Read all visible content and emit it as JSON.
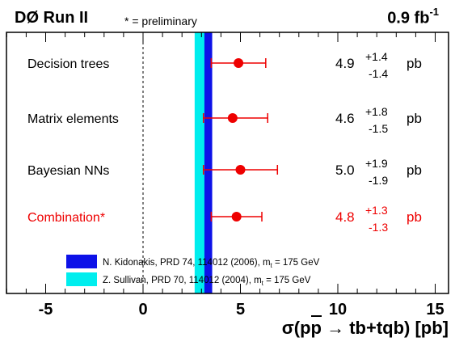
{
  "header": {
    "experiment": "DØ Run II",
    "note": "* = preliminary",
    "luminosity": "0.9 fb",
    "luminosity_exp": "-1"
  },
  "chart_data": {
    "type": "scatter",
    "orientation": "horizontal-forest",
    "xlabel": "σ(pp̄ → tb+tqb) [pb]",
    "xlim": [
      -7.5,
      16
    ],
    "x_ticks": [
      -5,
      0,
      5,
      10,
      15
    ],
    "reference_line_x": 0,
    "unit": "pb",
    "measurements": [
      {
        "label": "Decision trees",
        "value": 4.9,
        "err_up": 1.4,
        "err_down": 1.4,
        "value_text": "4.9",
        "up_text": "+1.4",
        "down_text": "-1.4",
        "color": "#000000",
        "marker_color": "#ee0000"
      },
      {
        "label": "Matrix elements",
        "value": 4.6,
        "err_up": 1.8,
        "err_down": 1.5,
        "value_text": "4.6",
        "up_text": "+1.8",
        "down_text": "-1.5",
        "color": "#000000",
        "marker_color": "#ee0000"
      },
      {
        "label": "Bayesian NNs",
        "value": 5.0,
        "err_up": 1.9,
        "err_down": 1.9,
        "value_text": "5.0",
        "up_text": "+1.9",
        "down_text": "-1.9",
        "color": "#000000",
        "marker_color": "#ee0000"
      },
      {
        "label": "Combination*",
        "value": 4.8,
        "err_up": 1.3,
        "err_down": 1.3,
        "value_text": "4.8",
        "up_text": "+1.3",
        "down_text": "-1.3",
        "color": "#ee0000",
        "marker_color": "#ee0000"
      }
    ],
    "theory_bands": [
      {
        "label": "N. Kidonakis, PRD 74, 114012 (2006), m",
        "sub": "t",
        "suffix": " = 175 GeV",
        "x_min": 3.15,
        "x_max": 3.55,
        "color": "#0d12e8"
      },
      {
        "label": "Z. Sullivan, PRD 70, 114012 (2004), m",
        "sub": "t",
        "suffix": " = 175 GeV",
        "x_min": 2.65,
        "x_max": 3.3,
        "color": "#00eeee"
      }
    ]
  }
}
